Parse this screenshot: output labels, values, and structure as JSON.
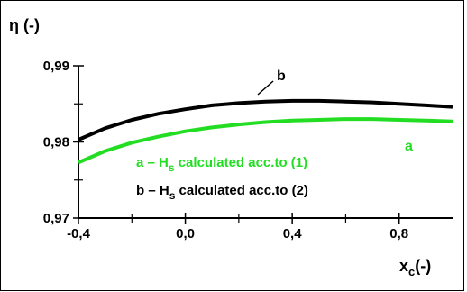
{
  "chart_data": {
    "type": "line",
    "ylabel": "η (-)",
    "xlabel": {
      "main": "x",
      "sub": "c",
      "tail": "(-)"
    },
    "xlim": [
      -0.4,
      1.0
    ],
    "ylim": [
      0.97,
      0.99
    ],
    "x_ticks": [
      -0.4,
      0.0,
      0.4,
      0.8
    ],
    "x_tick_labels": [
      "-0,4",
      "0,0",
      "0,4",
      "0,8"
    ],
    "y_ticks": [
      0.97,
      0.98,
      0.99
    ],
    "y_tick_labels": [
      "0,97",
      "0,98",
      "0,99"
    ],
    "grid": false,
    "series": [
      {
        "name": "a",
        "color": "#22dd22",
        "x": [
          -0.4,
          -0.3,
          -0.2,
          -0.1,
          0.0,
          0.1,
          0.2,
          0.3,
          0.4,
          0.5,
          0.6,
          0.7,
          0.8,
          0.9,
          1.0
        ],
        "y": [
          0.9773,
          0.9788,
          0.9799,
          0.9807,
          0.9814,
          0.9819,
          0.9823,
          0.9826,
          0.9828,
          0.9829,
          0.983,
          0.983,
          0.9829,
          0.9828,
          0.9827
        ]
      },
      {
        "name": "b",
        "color": "#000000",
        "x": [
          -0.4,
          -0.3,
          -0.2,
          -0.1,
          0.0,
          0.1,
          0.2,
          0.3,
          0.4,
          0.5,
          0.6,
          0.7,
          0.8,
          0.9,
          1.0
        ],
        "y": [
          0.9803,
          0.9818,
          0.9829,
          0.9837,
          0.9843,
          0.9848,
          0.9851,
          0.9853,
          0.9854,
          0.9854,
          0.9853,
          0.9852,
          0.985,
          0.9848,
          0.9846
        ]
      }
    ],
    "curve_labels": [
      {
        "series": "b",
        "text": "b"
      },
      {
        "series": "a",
        "text": "a"
      }
    ],
    "legend": [
      {
        "prefix": "a – H",
        "sub": "s",
        "suffix": " calculated acc.to (1)",
        "color": "#22dd22"
      },
      {
        "prefix": "b – H",
        "sub": "s",
        "suffix": " calculated acc.to (2)",
        "color": "#000000"
      }
    ]
  }
}
